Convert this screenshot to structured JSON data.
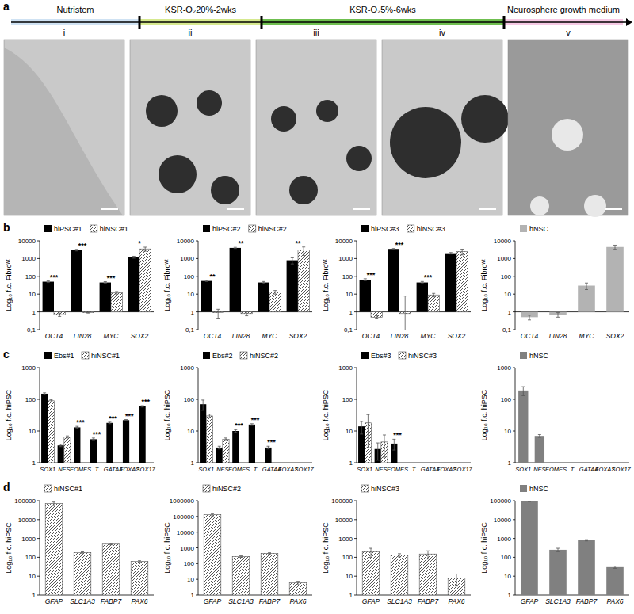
{
  "panel_labels": [
    "a",
    "b",
    "c",
    "d"
  ],
  "timeline": {
    "stages": [
      {
        "label": "Nutristem",
        "color": "#cfe2f3"
      },
      {
        "label": "KSR-O₂20%-2wks",
        "color": "#d6e98f"
      },
      {
        "label": "KSR-O₂5%-6wks",
        "color": "#6fbf4f"
      },
      {
        "label": "Neurosphere growth medium",
        "color": "#f6c9e4"
      }
    ],
    "images": [
      "i",
      "ii",
      "iii",
      "iv",
      "v"
    ]
  },
  "chart_data": [
    {
      "type": "bar",
      "log": "y",
      "grid": false,
      "legend": "top",
      "ylabel": "Log₁₀ f.c. Fibroʷᵗ",
      "categories": [
        "OCT4",
        "LIN28",
        "MYC",
        "SOX2"
      ],
      "ylim": [
        0.1,
        10000
      ],
      "yticks": [
        {
          "value": 0.1,
          "label": "0,1"
        },
        1,
        10,
        100,
        1000,
        10000
      ],
      "series": [
        {
          "name": "hiPSC#1",
          "color": "#000000",
          "values": [
            50,
            3000,
            45,
            1200
          ],
          "errors": [
            5,
            300,
            5,
            150
          ]
        },
        {
          "name": "hiNSC#1",
          "color": "#555555",
          "marker": "hatch",
          "values": [
            0.7,
            0.9,
            12,
            3500
          ],
          "errors": [
            0.15,
            0.05,
            2,
            900
          ]
        }
      ],
      "annotations": [
        "***",
        "***",
        "***",
        "*"
      ]
    },
    {
      "type": "bar",
      "log": "y",
      "grid": false,
      "legend": "top",
      "ylabel": "Log₁₀ f.c. Fibroʷᵗ",
      "categories": [
        "OCT4",
        "LIN28",
        "MYC",
        "SOX2"
      ],
      "ylim": [
        0.1,
        10000
      ],
      "yticks": [
        {
          "value": 0.1,
          "label": "0,1"
        },
        1,
        10,
        100,
        1000,
        10000
      ],
      "series": [
        {
          "name": "hiPSC#2",
          "color": "#000000",
          "values": [
            55,
            4000,
            45,
            800
          ],
          "errors": [
            4,
            300,
            6,
            300
          ]
        },
        {
          "name": "hiNSC#2",
          "color": "#555555",
          "marker": "hatch",
          "values": [
            0.9,
            0.8,
            13,
            3000
          ],
          "errors": [
            0.5,
            0.2,
            3,
            1500
          ]
        }
      ],
      "annotations": [
        "**",
        "**",
        null,
        "**"
      ]
    },
    {
      "type": "bar",
      "log": "y",
      "grid": false,
      "legend": "top",
      "ylabel": "Log₁₀ f.c. Fibroʷᵗ",
      "categories": [
        "OCT4",
        "LIN28",
        "MYC",
        "SOX2"
      ],
      "ylim": [
        0.1,
        10000
      ],
      "yticks": [
        {
          "value": 0.1,
          "label": "0,1"
        },
        1,
        10,
        100,
        1000,
        10000
      ],
      "series": [
        {
          "name": "hiPSC#3",
          "color": "#000000",
          "values": [
            65,
            3500,
            45,
            2000
          ],
          "errors": [
            8,
            200,
            6,
            200
          ]
        },
        {
          "name": "hiNSC#3",
          "color": "#555555",
          "marker": "hatch",
          "values": [
            0.5,
            0.8,
            9,
            2500
          ],
          "errors": [
            0.1,
            7,
            2,
            900
          ]
        }
      ],
      "annotations": [
        "***",
        "***",
        "***",
        null
      ]
    },
    {
      "type": "bar",
      "log": "y",
      "grid": false,
      "legend": "top",
      "ylabel": "Log₁₀ f.c. Fibroʷᵗ",
      "categories": [
        "OCT4",
        "LIN28",
        "MYC",
        "SOX2"
      ],
      "ylim": [
        0.1,
        10000
      ],
      "yticks": [
        {
          "value": 0.1,
          "label": "0,1"
        },
        1,
        10,
        100,
        1000,
        10000
      ],
      "series": [
        {
          "name": "hNSC",
          "color": "#b3b3b3",
          "values": [
            0.5,
            0.7,
            30,
            4500
          ],
          "errors": [
            0.15,
            0.2,
            12,
            1200
          ]
        }
      ]
    },
    {
      "type": "bar",
      "log": "y",
      "grid": false,
      "legend": "top",
      "ylabel": "Log₁₀ f.c. hiPSC",
      "categories": [
        "SOX1",
        "NES",
        "EOMES",
        "T",
        "GATA4",
        "FOXA2",
        "SOX17"
      ],
      "ylim": [
        1,
        1000
      ],
      "yticks": [
        1,
        10,
        100,
        1000
      ],
      "series": [
        {
          "name": "Ebs#1",
          "color": "#000000",
          "values": [
            150,
            3.5,
            13,
            5.5,
            18,
            22,
            60
          ],
          "errors": [
            10,
            0.3,
            1,
            0.5,
            1,
            1,
            3
          ]
        },
        {
          "name": "hiNSC#1",
          "color": "#555555",
          "marker": "hatch",
          "values": [
            90,
            6.5,
            null,
            null,
            null,
            null,
            null
          ],
          "errors": [
            8,
            0.5,
            null,
            null,
            null,
            null,
            null
          ]
        }
      ],
      "annotations": [
        null,
        null,
        "***",
        "***",
        "***",
        "***",
        "***"
      ]
    },
    {
      "type": "bar",
      "log": "y",
      "grid": false,
      "legend": "top",
      "ylabel": "Log₁₀ f.c. hiPSC",
      "categories": [
        "SOX1",
        "NES",
        "EOMES",
        "T",
        "GATA4",
        "FOXA2",
        "SOX17"
      ],
      "ylim": [
        1,
        1000
      ],
      "yticks": [
        1,
        10,
        100,
        1000
      ],
      "series": [
        {
          "name": "Ebs#2",
          "color": "#000000",
          "values": [
            70,
            3,
            10,
            16,
            3,
            null,
            null
          ],
          "errors": [
            25,
            0.3,
            1,
            1,
            0.3,
            null,
            null
          ]
        },
        {
          "name": "hiNSC#2",
          "color": "#555555",
          "marker": "hatch",
          "values": [
            30,
            5.5,
            null,
            null,
            null,
            null,
            null
          ],
          "errors": [
            4,
            0.5,
            null,
            null,
            null,
            null,
            null
          ]
        }
      ],
      "annotations": [
        null,
        null,
        "***",
        "***",
        "***",
        null,
        null
      ]
    },
    {
      "type": "bar",
      "log": "y",
      "grid": false,
      "legend": "top",
      "ylabel": "Log₁₀ f.c. hiPSC",
      "categories": [
        "SOX1",
        "NES",
        "EOMES",
        "T",
        "GATA4",
        "FOXA2",
        "SOX17"
      ],
      "ylim": [
        1,
        1000
      ],
      "yticks": [
        1,
        10,
        100,
        1000
      ],
      "series": [
        {
          "name": "Ebs#3",
          "color": "#000000",
          "values": [
            14,
            2.7,
            4,
            null,
            null,
            null,
            null
          ],
          "errors": [
            6,
            1.5,
            1.5,
            null,
            null,
            null,
            null
          ]
        },
        {
          "name": "hiNSC#3",
          "color": "#555555",
          "marker": "hatch",
          "values": [
            18,
            4.5,
            null,
            null,
            null,
            null,
            null
          ],
          "errors": [
            15,
            3,
            null,
            null,
            null,
            null,
            null
          ]
        }
      ],
      "annotations": [
        null,
        null,
        "***",
        null,
        null,
        null,
        null
      ]
    },
    {
      "type": "bar",
      "log": "y",
      "grid": false,
      "legend": "top",
      "ylabel": "Log₁₀ f.c. hiPSC",
      "categories": [
        "SOX1",
        "NES",
        "EOMES",
        "T",
        "GATA4",
        "FOXA2",
        "SOX17"
      ],
      "ylim": [
        1,
        1000
      ],
      "yticks": [
        1,
        10,
        100,
        1000
      ],
      "series": [
        {
          "name": "hNSC",
          "color": "#808080",
          "values": [
            190,
            7,
            null,
            null,
            null,
            null,
            null
          ],
          "errors": [
            60,
            0.7,
            null,
            null,
            null,
            null,
            null
          ]
        }
      ]
    },
    {
      "type": "bar",
      "log": "y",
      "grid": false,
      "legend": "top",
      "ylabel": "Log₁₀ f.c. hiPSC",
      "categories": [
        "GFAP",
        "SLC1A3",
        "FABP7",
        "PAX6"
      ],
      "ylim": [
        1,
        100000
      ],
      "yticks": [
        1,
        10,
        100,
        1000,
        10000,
        100000
      ],
      "series": [
        {
          "name": "hiNSC#1",
          "color": "#555555",
          "marker": "hatch",
          "values": [
            70000,
            180,
            500,
            60
          ],
          "errors": [
            15000,
            15,
            40,
            6
          ]
        }
      ]
    },
    {
      "type": "bar",
      "log": "y",
      "grid": false,
      "legend": "top",
      "ylabel": "Log₁₀ f.c. hiPSC",
      "categories": [
        "GFAP",
        "SLC1A3",
        "FABP7",
        "PAX6"
      ],
      "ylim": [
        1,
        1000000
      ],
      "yticks": [
        1,
        10,
        100,
        1000,
        10000,
        100000,
        1000000
      ],
      "series": [
        {
          "name": "hiNSC#2",
          "color": "#555555",
          "marker": "hatch",
          "values": [
            130000,
            280,
            450,
            6
          ],
          "errors": [
            20000,
            30,
            40,
            1.5
          ]
        }
      ]
    },
    {
      "type": "bar",
      "log": "y",
      "grid": false,
      "legend": "top",
      "ylabel": "Log₁₀ f.c. hiPSC",
      "categories": [
        "GFAP",
        "SLC1A3",
        "FABP7",
        "PAX6"
      ],
      "ylim": [
        1,
        100000
      ],
      "yticks": [
        1,
        10,
        100,
        1000,
        10000,
        100000
      ],
      "series": [
        {
          "name": "hiNSC#3",
          "color": "#555555",
          "marker": "hatch",
          "values": [
            200,
            130,
            150,
            8
          ],
          "errors": [
            100,
            25,
            70,
            5
          ]
        }
      ]
    },
    {
      "type": "bar",
      "log": "y",
      "grid": false,
      "legend": "top",
      "ylabel": "Log₁₀ f.c. hiPSC",
      "categories": [
        "GFAP",
        "SLC1A3",
        "FABP7",
        "PAX6"
      ],
      "ylim": [
        1,
        100000
      ],
      "yticks": [
        1,
        10,
        100,
        1000,
        10000,
        100000
      ],
      "series": [
        {
          "name": "hNSC",
          "color": "#808080",
          "values": [
            95000,
            250,
            800,
            30
          ],
          "errors": [
            5000,
            50,
            60,
            4
          ]
        }
      ]
    }
  ]
}
